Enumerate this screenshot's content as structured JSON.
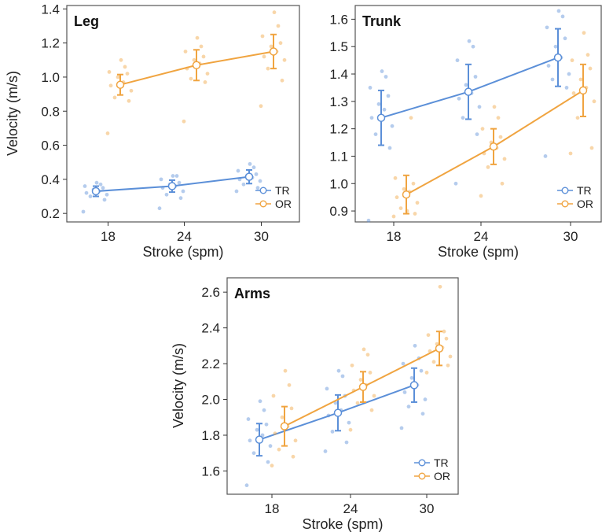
{
  "colors": {
    "TR": "#5b8fd8",
    "OR": "#f0a440"
  },
  "chart_data": [
    {
      "type": "line",
      "title": "Leg",
      "xlabel": "Stroke (spm)",
      "ylabel": "Velocity (m/s)",
      "categories": [
        "18",
        "24",
        "30"
      ],
      "ylim": [
        0.15,
        1.42
      ],
      "yticks": [
        "0.2",
        "0.4",
        "0.6",
        "0.8",
        "1.0",
        "1.2",
        "1.4"
      ],
      "legend": {
        "position": "bottom-right",
        "entries": [
          "TR",
          "OR"
        ]
      },
      "series": [
        {
          "name": "TR",
          "values": [
            0.33,
            0.36,
            0.415
          ],
          "err": [
            0.03,
            0.035,
            0.04
          ],
          "points": [
            [
              0.21,
              0.28,
              0.3,
              0.31,
              0.32,
              0.33,
              0.34,
              0.35,
              0.36,
              0.37,
              0.38
            ],
            [
              0.23,
              0.29,
              0.31,
              0.33,
              0.35,
              0.36,
              0.37,
              0.38,
              0.4,
              0.42,
              0.42
            ],
            [
              0.33,
              0.35,
              0.37,
              0.39,
              0.4,
              0.41,
              0.42,
              0.43,
              0.45,
              0.47,
              0.49
            ]
          ]
        },
        {
          "name": "OR",
          "values": [
            0.955,
            1.07,
            1.15
          ],
          "err": [
            0.06,
            0.09,
            0.1
          ],
          "points": [
            [
              0.67,
              0.86,
              0.88,
              0.92,
              0.95,
              0.97,
              1.0,
              1.02,
              1.03,
              1.06,
              1.1
            ],
            [
              0.74,
              0.97,
              0.99,
              1.02,
              1.05,
              1.08,
              1.1,
              1.12,
              1.15,
              1.18,
              1.23
            ],
            [
              0.83,
              0.98,
              1.05,
              1.1,
              1.12,
              1.15,
              1.18,
              1.2,
              1.24,
              1.3,
              1.38
            ]
          ]
        }
      ]
    },
    {
      "type": "line",
      "title": "Trunk",
      "xlabel": "Stroke (spm)",
      "ylabel": "",
      "categories": [
        "18",
        "24",
        "30"
      ],
      "ylim": [
        0.86,
        1.65
      ],
      "yticks": [
        "0.9",
        "1.0",
        "1.1",
        "1.2",
        "1.3",
        "1.4",
        "1.5",
        "1.6"
      ],
      "legend": {
        "position": "bottom-right",
        "entries": [
          "TR",
          "OR"
        ]
      },
      "series": [
        {
          "name": "TR",
          "values": [
            1.24,
            1.335,
            1.46
          ],
          "err": [
            0.1,
            0.1,
            0.105
          ],
          "points": [
            [
              0.865,
              1.13,
              1.18,
              1.21,
              1.24,
              1.27,
              1.29,
              1.32,
              1.35,
              1.39,
              1.41
            ],
            [
              1.0,
              1.18,
              1.24,
              1.28,
              1.31,
              1.33,
              1.36,
              1.39,
              1.45,
              1.5,
              1.52
            ],
            [
              1.1,
              1.35,
              1.38,
              1.4,
              1.43,
              1.46,
              1.5,
              1.53,
              1.57,
              1.61,
              1.63
            ]
          ]
        },
        {
          "name": "OR",
          "values": [
            0.96,
            1.135,
            1.34
          ],
          "err": [
            0.07,
            0.065,
            0.095
          ],
          "points": [
            [
              0.88,
              0.89,
              0.91,
              0.93,
              0.95,
              0.97,
              0.98,
              1.0,
              1.02,
              1.24,
              0.9
            ],
            [
              0.955,
              1.0,
              1.06,
              1.09,
              1.11,
              1.13,
              1.15,
              1.17,
              1.2,
              1.24,
              1.28
            ],
            [
              1.11,
              1.13,
              1.24,
              1.3,
              1.33,
              1.35,
              1.38,
              1.42,
              1.45,
              1.47,
              1.55
            ]
          ]
        }
      ]
    },
    {
      "type": "line",
      "title": "Arms",
      "xlabel": "Stroke (spm)",
      "ylabel": "Velocity (m/s)",
      "categories": [
        "18",
        "24",
        "30"
      ],
      "ylim": [
        1.47,
        2.68
      ],
      "yticks": [
        "1.6",
        "1.8",
        "2.0",
        "2.2",
        "2.4",
        "2.6"
      ],
      "legend": {
        "position": "bottom-right",
        "entries": [
          "TR",
          "OR"
        ]
      },
      "series": [
        {
          "name": "TR",
          "values": [
            1.775,
            1.925,
            2.08
          ],
          "err": [
            0.09,
            0.1,
            0.095
          ],
          "points": [
            [
              1.52,
              1.65,
              1.7,
              1.74,
              1.77,
              1.8,
              1.83,
              1.86,
              1.89,
              1.94,
              1.99
            ],
            [
              1.71,
              1.76,
              1.82,
              1.87,
              1.91,
              1.94,
              1.98,
              2.02,
              2.06,
              2.13,
              2.16
            ],
            [
              1.84,
              1.92,
              1.96,
              2.0,
              2.04,
              2.08,
              2.12,
              2.16,
              2.2,
              2.23,
              2.3
            ]
          ]
        },
        {
          "name": "OR",
          "values": [
            1.85,
            2.07,
            2.285
          ],
          "err": [
            0.11,
            0.085,
            0.095
          ],
          "points": [
            [
              1.63,
              1.68,
              1.72,
              1.77,
              1.81,
              1.85,
              1.9,
              1.95,
              2.02,
              2.08,
              2.16
            ],
            [
              1.83,
              1.94,
              1.98,
              2.02,
              2.05,
              2.08,
              2.11,
              2.15,
              2.19,
              2.25,
              2.28
            ],
            [
              2.15,
              2.19,
              2.21,
              2.24,
              2.27,
              2.29,
              2.31,
              2.34,
              2.36,
              2.38,
              2.63
            ]
          ]
        }
      ]
    }
  ]
}
